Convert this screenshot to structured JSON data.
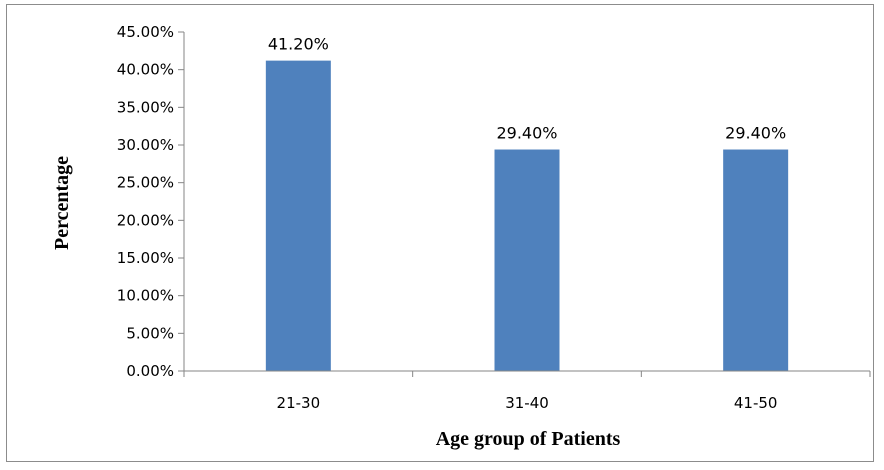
{
  "chart_data": {
    "type": "bar",
    "categories": [
      "21-30",
      "31-40",
      "41-50"
    ],
    "values": [
      41.2,
      29.4,
      29.4
    ],
    "data_labels": [
      "41.20%",
      "29.40%",
      "29.40%"
    ],
    "xlabel": "Age group of Patients",
    "ylabel": "Percentage",
    "ylim": [
      0,
      45
    ],
    "y_ticks": [
      0,
      5,
      10,
      15,
      20,
      25,
      30,
      35,
      40,
      45
    ],
    "y_tick_labels": [
      "0.00%",
      "5.00%",
      "10.00%",
      "15.00%",
      "20.00%",
      "25.00%",
      "30.00%",
      "35.00%",
      "40.00%",
      "45.00%"
    ],
    "bar_color": "#4f81bd",
    "grid": false,
    "legend": "none"
  }
}
